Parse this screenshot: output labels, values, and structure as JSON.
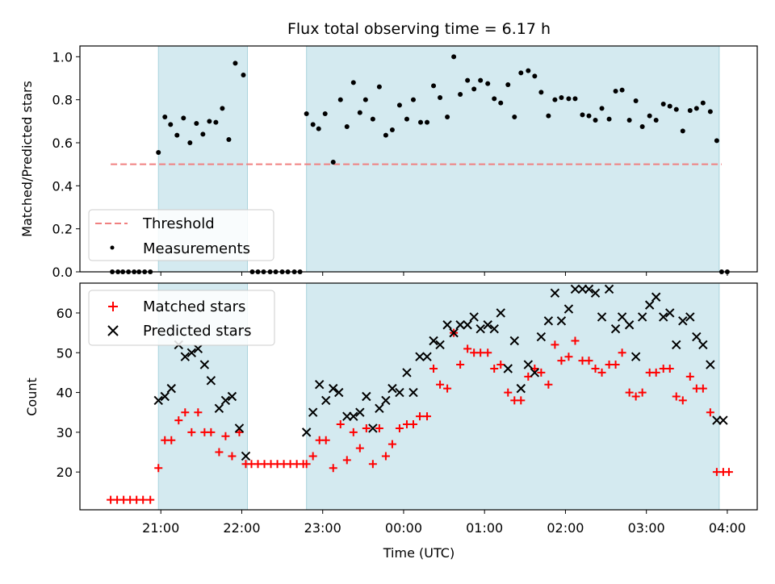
{
  "chart_data": [
    {
      "type": "scatter",
      "title": "Flux total observing time = 6.17 h",
      "xlabel": "",
      "ylabel": "Matched/Predicted stars",
      "ylim": [
        0,
        1.05
      ],
      "yticks": [
        "0.0",
        "0.2",
        "0.4",
        "0.6",
        "0.8",
        "1.0"
      ],
      "xlim": [
        20.0,
        28.37
      ],
      "shaded_intervals": [
        [
          20.97,
          22.07
        ],
        [
          22.8,
          27.9
        ]
      ],
      "shade_color": "#d4eaf0",
      "legend": {
        "position": "lower-left",
        "entries": [
          "Threshold",
          "Measurements"
        ]
      },
      "series": [
        {
          "name": "Threshold",
          "style": "dashed-line",
          "color": "#f08080",
          "x": [
            20.38,
            27.93
          ],
          "y": [
            0.5,
            0.5
          ]
        },
        {
          "name": "Measurements",
          "style": "dot",
          "color": "#000000",
          "x": [
            20.4,
            20.47,
            20.53,
            20.6,
            20.67,
            20.73,
            20.8,
            20.87,
            20.97,
            21.05,
            21.12,
            21.2,
            21.28,
            21.36,
            21.44,
            21.52,
            21.6,
            21.68,
            21.76,
            21.84,
            21.92,
            22.02,
            22.13,
            22.2,
            22.27,
            22.35,
            22.42,
            22.5,
            22.57,
            22.65,
            22.72,
            22.8,
            22.88,
            22.95,
            23.03,
            23.13,
            23.22,
            23.3,
            23.38,
            23.46,
            23.53,
            23.62,
            23.7,
            23.78,
            23.86,
            23.95,
            24.04,
            24.12,
            24.21,
            24.29,
            24.37,
            24.45,
            24.54,
            24.62,
            24.7,
            24.79,
            24.87,
            24.95,
            25.04,
            25.12,
            25.2,
            25.29,
            25.37,
            25.45,
            25.54,
            25.62,
            25.7,
            25.79,
            25.87,
            25.95,
            26.04,
            26.12,
            26.21,
            26.29,
            26.37,
            26.45,
            26.54,
            26.62,
            26.7,
            26.79,
            26.87,
            26.95,
            27.04,
            27.12,
            27.21,
            27.29,
            27.37,
            27.45,
            27.54,
            27.62,
            27.7,
            27.79,
            27.87,
            27.93,
            28.0
          ],
          "y": [
            0,
            0,
            0,
            0,
            0,
            0,
            0,
            0,
            0.555,
            0.72,
            0.685,
            0.635,
            0.715,
            0.6,
            0.69,
            0.64,
            0.7,
            0.695,
            0.76,
            0.615,
            0.97,
            0.915,
            0,
            0,
            0,
            0,
            0,
            0,
            0,
            0,
            0,
            0.735,
            0.685,
            0.665,
            0.735,
            0.51,
            0.8,
            0.675,
            0.88,
            0.74,
            0.8,
            0.71,
            0.86,
            0.635,
            0.66,
            0.775,
            0.71,
            0.8,
            0.695,
            0.695,
            0.865,
            0.81,
            0.72,
            1.0,
            0.825,
            0.89,
            0.85,
            0.89,
            0.875,
            0.805,
            0.785,
            0.87,
            0.72,
            0.925,
            0.935,
            0.91,
            0.835,
            0.725,
            0.8,
            0.81,
            0.805,
            0.805,
            0.73,
            0.725,
            0.705,
            0.76,
            0.71,
            0.84,
            0.845,
            0.705,
            0.795,
            0.675,
            0.725,
            0.705,
            0.78,
            0.77,
            0.755,
            0.655,
            0.75,
            0.76,
            0.785,
            0.745,
            0.61,
            0,
            0
          ]
        }
      ]
    },
    {
      "type": "scatter",
      "title": "",
      "xlabel": "Time (UTC)",
      "ylabel": "Count",
      "ylim": [
        10.5,
        67.5
      ],
      "yticks": [
        "20",
        "30",
        "40",
        "50",
        "60"
      ],
      "xlim": [
        20.0,
        28.37
      ],
      "xticks": [
        "21:00",
        "22:00",
        "23:00",
        "00:00",
        "01:00",
        "02:00",
        "03:00",
        "04:00"
      ],
      "shaded_intervals": [
        [
          20.97,
          22.07
        ],
        [
          22.8,
          27.9
        ]
      ],
      "shade_color": "#d4eaf0",
      "legend": {
        "position": "upper-left",
        "entries": [
          "Matched stars",
          "Predicted stars"
        ]
      },
      "series": [
        {
          "name": "Matched stars",
          "style": "plus",
          "color": "#ff0000",
          "x": [
            20.38,
            20.46,
            20.54,
            20.62,
            20.7,
            20.78,
            20.87,
            20.97,
            21.05,
            21.13,
            21.22,
            21.3,
            21.38,
            21.46,
            21.54,
            21.62,
            21.72,
            21.8,
            21.88,
            21.97,
            22.05,
            22.12,
            22.2,
            22.28,
            22.36,
            22.44,
            22.52,
            22.6,
            22.68,
            22.76,
            22.8,
            22.88,
            22.96,
            23.04,
            23.13,
            23.22,
            23.3,
            23.38,
            23.46,
            23.54,
            23.62,
            23.7,
            23.78,
            23.86,
            23.95,
            24.04,
            24.12,
            24.2,
            24.29,
            24.37,
            24.45,
            24.54,
            24.62,
            24.7,
            24.79,
            24.87,
            24.95,
            25.04,
            25.12,
            25.2,
            25.29,
            25.37,
            25.45,
            25.54,
            25.62,
            25.7,
            25.79,
            25.87,
            25.95,
            26.04,
            26.12,
            26.21,
            26.29,
            26.37,
            26.45,
            26.54,
            26.62,
            26.7,
            26.79,
            26.87,
            26.95,
            27.04,
            27.12,
            27.21,
            27.29,
            27.37,
            27.45,
            27.54,
            27.62,
            27.7,
            27.79,
            27.87,
            27.95,
            28.02
          ],
          "y": [
            13,
            13,
            13,
            13,
            13,
            13,
            13,
            21,
            28,
            28,
            33,
            35,
            30,
            35,
            30,
            30,
            25,
            29,
            24,
            30,
            22,
            22,
            22,
            22,
            22,
            22,
            22,
            22,
            22,
            22,
            22,
            24,
            28,
            28,
            21,
            32,
            23,
            30,
            26,
            31,
            22,
            31,
            24,
            27,
            31,
            32,
            32,
            34,
            34,
            46,
            42,
            41,
            55,
            47,
            51,
            50,
            50,
            50,
            46,
            47,
            40,
            38,
            38,
            44,
            46,
            45,
            42,
            52,
            48,
            49,
            53,
            48,
            48,
            46,
            45,
            47,
            47,
            50,
            40,
            39,
            40,
            45,
            45,
            46,
            46,
            39,
            38,
            44,
            41,
            41,
            35,
            20,
            20,
            20
          ],
          "sparse": true
        },
        {
          "name": "Predicted stars",
          "style": "x",
          "color": "#000000",
          "x": [
            20.97,
            21.05,
            21.13,
            21.22,
            21.3,
            21.38,
            21.46,
            21.54,
            21.62,
            21.72,
            21.8,
            21.88,
            21.97,
            22.05,
            22.8,
            22.88,
            22.96,
            23.04,
            23.13,
            23.2,
            23.3,
            23.38,
            23.46,
            23.54,
            23.62,
            23.7,
            23.78,
            23.86,
            23.95,
            24.04,
            24.12,
            24.2,
            24.29,
            24.37,
            24.45,
            24.54,
            24.62,
            24.7,
            24.79,
            24.87,
            24.95,
            25.04,
            25.12,
            25.2,
            25.29,
            25.37,
            25.45,
            25.54,
            25.62,
            25.7,
            25.79,
            25.87,
            25.95,
            26.04,
            26.12,
            26.21,
            26.29,
            26.37,
            26.45,
            26.54,
            26.62,
            26.7,
            26.79,
            26.87,
            26.95,
            27.04,
            27.12,
            27.21,
            27.29,
            27.37,
            27.45,
            27.54,
            27.62,
            27.7,
            27.79,
            27.87,
            27.95
          ],
          "y": [
            38,
            39,
            41,
            52,
            49,
            50,
            51,
            47,
            43,
            36,
            38,
            39,
            31,
            24,
            30,
            35,
            42,
            38,
            41,
            40,
            34,
            34,
            35,
            39,
            31,
            36,
            38,
            41,
            40,
            45,
            40,
            49,
            49,
            53,
            52,
            57,
            55,
            57,
            57,
            59,
            56,
            57,
            56,
            60,
            46,
            53,
            41,
            47,
            45,
            54,
            58,
            65,
            58,
            61,
            66,
            66,
            66,
            65,
            59,
            66,
            56,
            59,
            57,
            49,
            59,
            62,
            64,
            59,
            60,
            52,
            58,
            59,
            54,
            52,
            47,
            33,
            33
          ]
        }
      ]
    }
  ]
}
